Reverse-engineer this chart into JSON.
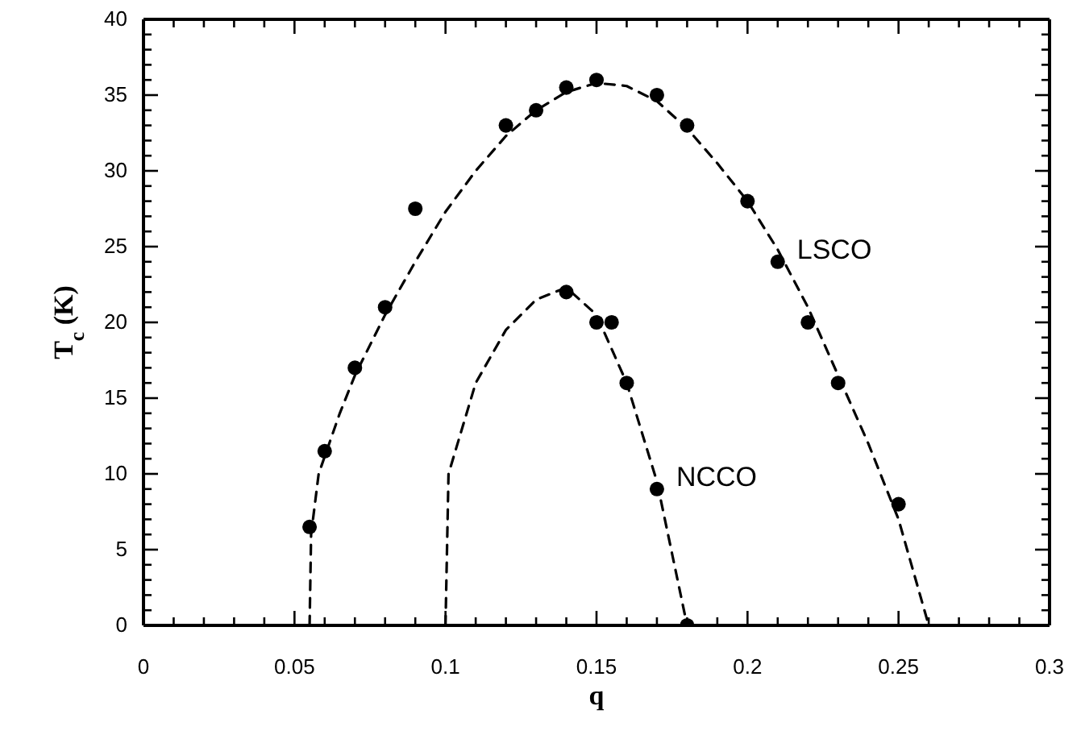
{
  "chart_data": {
    "type": "scatter",
    "xlabel": "q",
    "ylabel": "T$_{c}$ (K)",
    "xlim": [
      0,
      0.3
    ],
    "ylim": [
      0,
      40
    ],
    "xticks": [
      0,
      {
        "value": 0.01,
        "label": null
      },
      {
        "value": 0.02,
        "label": null
      },
      {
        "value": 0.03,
        "label": null
      },
      {
        "value": 0.04,
        "label": null
      },
      0.05,
      {
        "value": 0.06,
        "label": null
      },
      {
        "value": 0.07,
        "label": null
      },
      {
        "value": 0.08,
        "label": null
      },
      {
        "value": 0.09,
        "label": null
      },
      0.1,
      {
        "value": 0.11,
        "label": null
      },
      {
        "value": 0.12,
        "label": null
      },
      {
        "value": 0.13,
        "label": null
      },
      {
        "value": 0.14,
        "label": null
      },
      0.15,
      {
        "value": 0.16,
        "label": null
      },
      {
        "value": 0.17,
        "label": null
      },
      {
        "value": 0.18,
        "label": null
      },
      {
        "value": 0.19,
        "label": null
      },
      0.2,
      {
        "value": 0.21,
        "label": null
      },
      {
        "value": 0.22,
        "label": null
      },
      {
        "value": 0.23,
        "label": null
      },
      {
        "value": 0.24,
        "label": null
      },
      0.25,
      {
        "value": 0.26,
        "label": null
      },
      {
        "value": 0.27,
        "label": null
      },
      {
        "value": 0.28,
        "label": null
      },
      {
        "value": 0.29,
        "label": null
      },
      0.3
    ],
    "yticks": [
      0,
      {
        "value": 1,
        "label": null
      },
      {
        "value": 2,
        "label": null
      },
      {
        "value": 3,
        "label": null
      },
      {
        "value": 4,
        "label": null
      },
      5,
      {
        "value": 6,
        "label": null
      },
      {
        "value": 7,
        "label": null
      },
      {
        "value": 8,
        "label": null
      },
      {
        "value": 9,
        "label": null
      },
      10,
      {
        "value": 11,
        "label": null
      },
      {
        "value": 12,
        "label": null
      },
      {
        "value": 13,
        "label": null
      },
      {
        "value": 14,
        "label": null
      },
      15,
      {
        "value": 16,
        "label": null
      },
      {
        "value": 17,
        "label": null
      },
      {
        "value": 18,
        "label": null
      },
      {
        "value": 19,
        "label": null
      },
      20,
      {
        "value": 21,
        "label": null
      },
      {
        "value": 22,
        "label": null
      },
      {
        "value": 23,
        "label": null
      },
      {
        "value": 24,
        "label": null
      },
      25,
      {
        "value": 26,
        "label": null
      },
      {
        "value": 27,
        "label": null
      },
      {
        "value": 28,
        "label": null
      },
      {
        "value": 29,
        "label": null
      },
      30,
      {
        "value": 31,
        "label": null
      },
      {
        "value": 32,
        "label": null
      },
      {
        "value": 33,
        "label": null
      },
      {
        "value": 34,
        "label": null
      },
      35,
      {
        "value": 36,
        "label": null
      },
      {
        "value": 37,
        "label": null
      },
      {
        "value": 38,
        "label": null
      },
      {
        "value": 39,
        "label": null
      },
      40
    ],
    "series": [
      {
        "name": "LSCO",
        "marker": "circle",
        "color": "#000000",
        "x": [
          0.055,
          0.06,
          0.07,
          0.08,
          0.09,
          0.12,
          0.13,
          0.14,
          0.15,
          0.17,
          0.18,
          0.2,
          0.21,
          0.22,
          0.23,
          0.25
        ],
        "values": [
          6.5,
          11.5,
          17,
          21,
          27.5,
          33,
          34,
          35.5,
          36,
          35,
          33,
          28,
          24,
          20,
          16,
          8
        ]
      },
      {
        "name": "NCCO",
        "marker": "circle",
        "color": "#000000",
        "x": [
          0.14,
          0.15,
          0.155,
          0.16,
          0.17,
          0.18
        ],
        "values": [
          22,
          20,
          20,
          16,
          9,
          0
        ]
      },
      {
        "type": "line",
        "marker": "none",
        "line_style": "dashed",
        "color": "#000000",
        "x": [
          0.055,
          0.0555,
          0.058,
          0.065,
          0.07,
          0.08,
          0.09,
          0.1,
          0.11,
          0.12,
          0.13,
          0.14,
          0.15,
          0.16,
          0.17,
          0.18,
          0.19,
          0.2,
          0.21,
          0.22,
          0.23,
          0.24,
          0.25,
          0.26
        ],
        "values": [
          0,
          6,
          10,
          14,
          16.5,
          20.5,
          24,
          27.3,
          30,
          32.3,
          34,
          35.2,
          35.8,
          35.6,
          34.6,
          32.8,
          30.5,
          28,
          24.8,
          21,
          16.5,
          12,
          7,
          0
        ]
      },
      {
        "type": "line",
        "marker": "none",
        "line_style": "dashed",
        "color": "#000000",
        "x": [
          0.1,
          0.101,
          0.11,
          0.12,
          0.13,
          0.14,
          0.15,
          0.16,
          0.17,
          0.18
        ],
        "values": [
          0,
          10,
          16,
          19.5,
          21.5,
          22.3,
          20.5,
          16,
          9.5,
          0
        ]
      }
    ]
  }
}
